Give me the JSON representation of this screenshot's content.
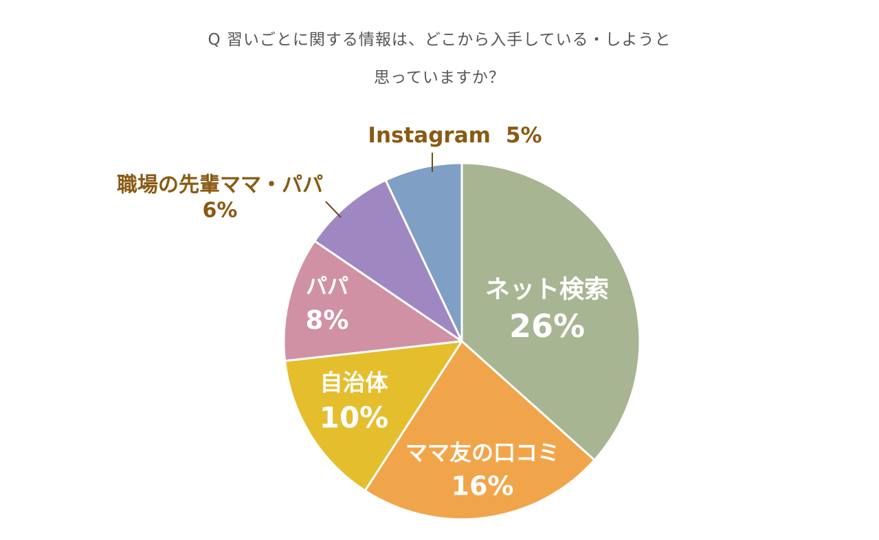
{
  "title_lines": [
    "Q 習いごとに関する情報は、どこから入手している・しようと",
    "思っていますか？"
  ],
  "chart_data": {
    "type": "pie",
    "title": "Q 習いごとに関する情報は、どこから入手している・しようと思っていますか？",
    "unit": "%",
    "start_angle_deg": 0,
    "direction": "clockwise",
    "slices": [
      {
        "name": "ネット検索",
        "value": 26,
        "value_label": "26%",
        "color": "#a7b592",
        "label_style": "inside"
      },
      {
        "name": "ママ友の口コミ",
        "value": 16,
        "value_label": "16%",
        "color": "#f1a54a",
        "label_style": "inside"
      },
      {
        "name": "自治体",
        "value": 10,
        "value_label": "10%",
        "color": "#e5be2e",
        "label_style": "inside"
      },
      {
        "name": "パパ",
        "value": 8,
        "value_label": "8%",
        "color": "#d091a5",
        "label_style": "inside"
      },
      {
        "name": "職場の先輩ママ・パパ",
        "value": 6,
        "value_label": "6%",
        "color": "#9f88c1",
        "label_style": "outside"
      },
      {
        "name": "Instagram",
        "value": 5,
        "value_label": "5%",
        "color": "#7f9fc4",
        "label_style": "outside"
      }
    ],
    "inside_label_color": "#ffffff",
    "outside_label_color": "#8a5a12"
  }
}
